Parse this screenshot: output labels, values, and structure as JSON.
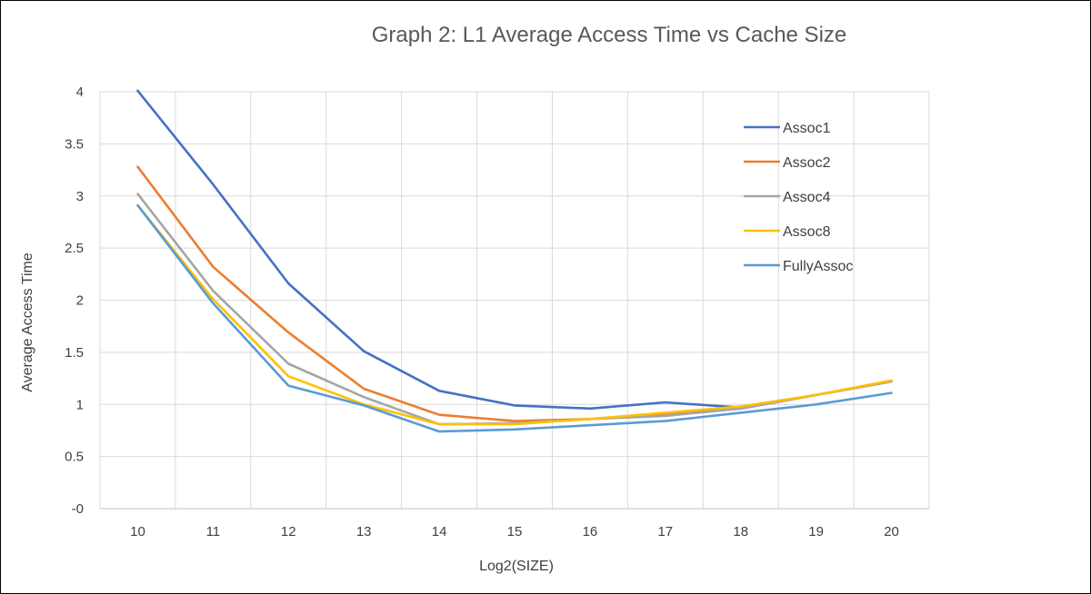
{
  "chart_data": {
    "type": "line",
    "title": "Graph 2: L1 Average Access Time vs Cache Size",
    "xlabel": "Log2(SIZE)",
    "ylabel": "Average Access Time",
    "x": [
      10,
      11,
      12,
      13,
      14,
      15,
      16,
      17,
      18,
      19,
      20
    ],
    "ylim": [
      0,
      4
    ],
    "yticks": [
      {
        "value": 4,
        "label": "4"
      },
      {
        "value": 3.5,
        "label": "3.5"
      },
      {
        "value": 3,
        "label": "3"
      },
      {
        "value": 2.5,
        "label": "2.5"
      },
      {
        "value": 2,
        "label": "2"
      },
      {
        "value": 1.5,
        "label": "1.5"
      },
      {
        "value": 1,
        "label": "1"
      },
      {
        "value": 0.5,
        "label": "0.5"
      },
      {
        "value": 0,
        "label": "-0"
      }
    ],
    "grid": true,
    "legend_position": "right",
    "series": [
      {
        "name": "Assoc1",
        "color": "#4472C4",
        "values": [
          4.01,
          3.11,
          2.16,
          1.51,
          1.13,
          0.99,
          0.96,
          1.02,
          0.97,
          1.09,
          1.22
        ]
      },
      {
        "name": "Assoc2",
        "color": "#ED7D31",
        "values": [
          3.28,
          2.32,
          1.69,
          1.15,
          0.9,
          0.84,
          0.86,
          0.9,
          0.96,
          1.09,
          1.22
        ]
      },
      {
        "name": "Assoc4",
        "color": "#A5A5A5",
        "values": [
          3.02,
          2.09,
          1.39,
          1.07,
          0.81,
          0.82,
          0.86,
          0.89,
          0.96,
          1.09,
          1.22
        ]
      },
      {
        "name": "Assoc8",
        "color": "#FFC000",
        "values": [
          2.91,
          2.01,
          1.27,
          1.0,
          0.81,
          0.81,
          0.86,
          0.92,
          0.98,
          1.09,
          1.23
        ]
      },
      {
        "name": "FullyAssoc",
        "color": "#5B9BD5",
        "values": [
          2.91,
          1.97,
          1.18,
          0.99,
          0.74,
          0.76,
          0.8,
          0.84,
          0.92,
          1.0,
          1.11
        ]
      }
    ]
  }
}
